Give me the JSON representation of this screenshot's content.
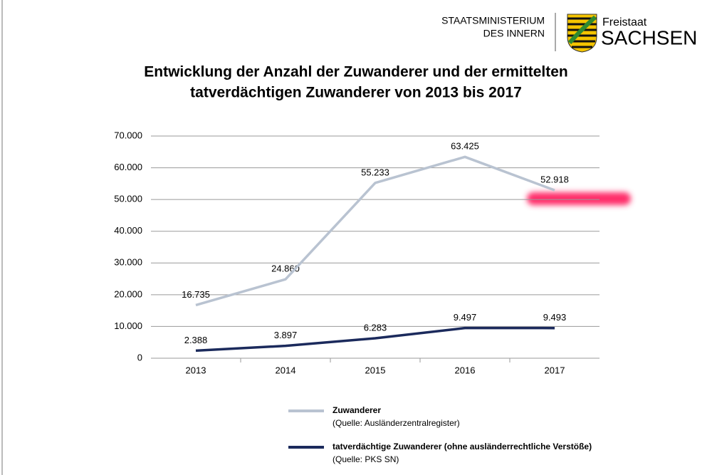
{
  "header": {
    "ministry": [
      "STAATSMINISTERIUM",
      "DES INNERN"
    ],
    "state_small": "Freistaat",
    "state_large": "SACHSEN"
  },
  "chart_data": {
    "type": "line",
    "title": [
      "Entwicklung der Anzahl der Zuwanderer und der ermittelten",
      "tatverdächtigen Zuwanderer von 2013 bis 2017"
    ],
    "categories": [
      "2013",
      "2014",
      "2015",
      "2016",
      "2017"
    ],
    "series": [
      {
        "name": "Zuwanderer",
        "source": "(Quelle: Ausländerzentralregister)",
        "color": "#b9c3d1",
        "values": [
          16735,
          24860,
          55233,
          63425,
          52918
        ],
        "value_labels": [
          "16.735",
          "24.860",
          "55.233",
          "63.425",
          "52.918"
        ]
      },
      {
        "name": "tatverdächtige Zuwanderer (ohne ausländerrechtliche Verstöße)",
        "source": "(Quelle: PKS SN)",
        "color": "#1b2a5c",
        "values": [
          2388,
          3897,
          6283,
          9497,
          9493
        ],
        "value_labels": [
          "2.388",
          "3.897",
          "6.283",
          "9.497",
          "9.493"
        ]
      }
    ],
    "ylim": [
      0,
      70000
    ],
    "yticks": [
      0,
      {
        "value": 10000,
        "label": "10.000"
      },
      {
        "value": 20000,
        "label": "20.000"
      },
      {
        "value": 30000,
        "label": "30.000"
      },
      {
        "value": 40000,
        "label": "40.000"
      },
      {
        "value": 50000,
        "label": "50.000"
      },
      {
        "value": 60000,
        "label": "60.000"
      },
      {
        "value": 70000,
        "label": "70.000"
      }
    ],
    "grid": true
  }
}
